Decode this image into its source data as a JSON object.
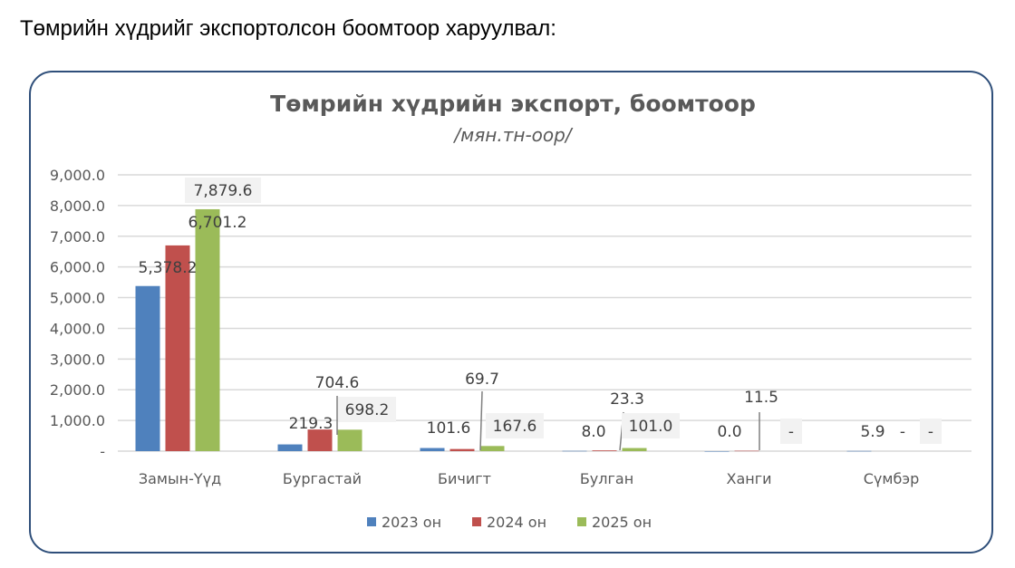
{
  "heading": "Төмрийн хүдрийг экспортолсон боомтоор харуулвал:",
  "chart_data": {
    "type": "bar",
    "title": "Төмрийн хүдрийн экспорт, боомтоор",
    "subtitle": "/мян.тн-оор/",
    "categories": [
      "Замын-Үүд",
      "Бургастай",
      "Бичигт",
      "Булган",
      "Ханги",
      "Сүмбэр"
    ],
    "series": [
      {
        "name": "2023 он",
        "color": "#4f81bd",
        "values": [
          5378.2,
          219.3,
          101.6,
          8.0,
          0.0,
          5.9
        ],
        "labels": [
          "5,378.2",
          "219.3",
          "101.6",
          "8.0",
          "0.0",
          "5.9"
        ]
      },
      {
        "name": "2024 он",
        "color": "#c0504d",
        "values": [
          6701.2,
          704.6,
          69.7,
          23.3,
          11.5,
          null
        ],
        "labels": [
          "6,701.2",
          "704.6",
          "69.7",
          "23.3",
          "11.5",
          "-"
        ]
      },
      {
        "name": "2025 он",
        "color": "#9bbb59",
        "values": [
          7879.6,
          698.2,
          167.6,
          101.0,
          null,
          null
        ],
        "labels": [
          "7,879.6",
          "698.2",
          "167.6",
          "101.0",
          "-",
          "-"
        ]
      }
    ],
    "yticks": [
      "-",
      "1,000.0",
      "2,000.0",
      "3,000.0",
      "4,000.0",
      "5,000.0",
      "6,000.0",
      "7,000.0",
      "8,000.0",
      "9,000.0"
    ],
    "ylim": [
      0,
      9000
    ],
    "grid": true,
    "legend": "bottom"
  }
}
